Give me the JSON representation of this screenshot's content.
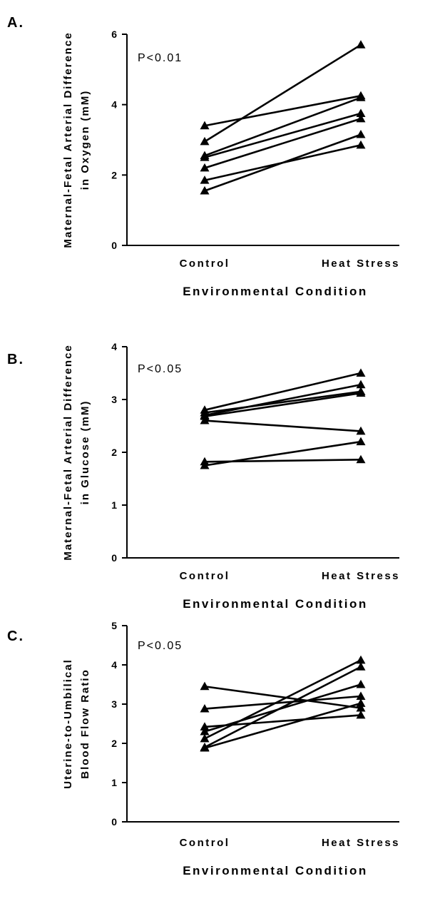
{
  "chart_data": [
    {
      "type": "line",
      "panel_label": "A.",
      "ylabel_lines": [
        "Maternal-Fetal Arterial Difference",
        "in Oxygen (mM)"
      ],
      "xlabel": "Environmental Condition",
      "categories": [
        "Control",
        "Heat Stress"
      ],
      "ylim": [
        0,
        6
      ],
      "yticks": [
        0,
        2,
        4,
        6
      ],
      "annotation": "P<0.01",
      "marker": "triangle",
      "series": [
        {
          "values": [
            3.4,
            4.25
          ]
        },
        {
          "values": [
            2.95,
            5.7
          ]
        },
        {
          "values": [
            2.55,
            4.2
          ]
        },
        {
          "values": [
            2.5,
            3.75
          ]
        },
        {
          "values": [
            2.2,
            3.6
          ]
        },
        {
          "values": [
            1.85,
            2.85
          ]
        },
        {
          "values": [
            1.55,
            3.15
          ]
        }
      ]
    },
    {
      "type": "line",
      "panel_label": "B.",
      "ylabel_lines": [
        "Maternal-Fetal Arterial Difference",
        "in Glucose (mM)"
      ],
      "xlabel": "Environmental Condition",
      "categories": [
        "Control",
        "Heat Stress"
      ],
      "ylim": [
        0,
        4
      ],
      "yticks": [
        0,
        1,
        2,
        3,
        4
      ],
      "annotation": "P<0.05",
      "marker": "triangle",
      "series": [
        {
          "values": [
            2.8,
            3.5
          ]
        },
        {
          "values": [
            2.75,
            3.15
          ]
        },
        {
          "values": [
            2.7,
            3.28
          ]
        },
        {
          "values": [
            2.68,
            3.12
          ]
        },
        {
          "values": [
            2.6,
            2.4
          ]
        },
        {
          "values": [
            1.82,
            1.86
          ]
        },
        {
          "values": [
            1.75,
            2.2
          ]
        }
      ]
    },
    {
      "type": "line",
      "panel_label": "C.",
      "ylabel_lines": [
        "Uterine-to-Umbilical",
        "Blood Flow Ratio"
      ],
      "xlabel": "Environmental Condition",
      "categories": [
        "Control",
        "Heat Stress"
      ],
      "ylim": [
        0,
        5
      ],
      "yticks": [
        0,
        1,
        2,
        3,
        4,
        5
      ],
      "annotation": "P<0.05",
      "marker": "triangle",
      "series": [
        {
          "values": [
            3.45,
            2.9
          ]
        },
        {
          "values": [
            2.88,
            3.2
          ]
        },
        {
          "values": [
            2.42,
            2.72
          ]
        },
        {
          "values": [
            2.3,
            3.5
          ]
        },
        {
          "values": [
            2.12,
            4.12
          ]
        },
        {
          "values": [
            1.9,
            3.95
          ]
        },
        {
          "values": [
            1.88,
            3.02
          ]
        }
      ]
    }
  ]
}
